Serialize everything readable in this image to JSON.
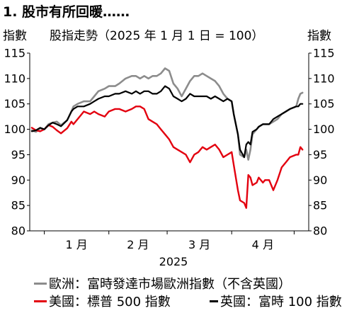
{
  "chart_data": {
    "type": "line",
    "title": "1. 股市有所回暖……",
    "subtitle": "股指走勢（2025 年 1 月 1 日 = 100）",
    "ylabel_left": "指數",
    "ylabel_right": "指數",
    "xlabel": "2025",
    "x_tick_labels": [
      "1 月",
      "2 月",
      "3 月",
      "4 月"
    ],
    "ylim": [
      80,
      115
    ],
    "y_ticks": [
      80,
      85,
      90,
      95,
      100,
      105,
      110,
      115
    ],
    "xlim": [
      "2024-12-25",
      "2025-05-08"
    ],
    "grid": false,
    "legend_position": "bottom",
    "x": [
      "2024-12-26",
      "2024-12-28",
      "2024-12-30",
      "2025-01-01",
      "2025-01-03",
      "2025-01-05",
      "2025-01-07",
      "2025-01-09",
      "2025-01-12",
      "2025-01-14",
      "2025-01-15",
      "2025-01-17",
      "2025-01-20",
      "2025-01-23",
      "2025-01-25",
      "2025-01-27",
      "2025-01-30",
      "2025-02-01",
      "2025-02-04",
      "2025-02-06",
      "2025-02-09",
      "2025-02-12",
      "2025-02-14",
      "2025-02-16",
      "2025-02-18",
      "2025-02-20",
      "2025-02-22",
      "2025-02-24",
      "2025-02-26",
      "2025-02-28",
      "2025-03-02",
      "2025-03-04",
      "2025-03-06",
      "2025-03-08",
      "2025-03-10",
      "2025-03-12",
      "2025-03-14",
      "2025-03-16",
      "2025-03-18",
      "2025-03-20",
      "2025-03-22",
      "2025-03-24",
      "2025-03-26",
      "2025-03-28",
      "2025-03-30",
      "2025-04-01",
      "2025-04-02",
      "2025-04-04",
      "2025-04-05",
      "2025-04-07",
      "2025-04-08",
      "2025-04-09",
      "2025-04-10",
      "2025-04-11",
      "2025-04-13",
      "2025-04-14",
      "2025-04-16",
      "2025-04-17",
      "2025-04-19",
      "2025-04-21",
      "2025-04-23",
      "2025-04-25",
      "2025-04-27",
      "2025-04-29",
      "2025-05-02",
      "2025-05-03",
      "2025-05-04",
      "2025-05-05"
    ],
    "series": [
      {
        "name": "歐洲：富時發達市場歐洲指數（不含英國）",
        "color": "#8c8c8c",
        "values": [
          99.8,
          99.5,
          100.2,
          100,
          101,
          101.3,
          101.5,
          100.8,
          101.8,
          103.5,
          104.5,
          105,
          105.5,
          105.5,
          106.5,
          107.5,
          108,
          108.5,
          108.5,
          109,
          110,
          110.5,
          110.5,
          110,
          110.5,
          110,
          110.5,
          110.5,
          111,
          112,
          111.5,
          109,
          108,
          106.5,
          108,
          109.5,
          110.5,
          110.5,
          111,
          110.5,
          110,
          109.5,
          108.5,
          107,
          106,
          105.5,
          103,
          99,
          95,
          94.5,
          96,
          94,
          96,
          99,
          100,
          100.5,
          101,
          101,
          101,
          101.5,
          102,
          103,
          103.5,
          104,
          104.5,
          106,
          107,
          107.2
        ]
      },
      {
        "name": "美國：標普 500 指數",
        "color": "#e3000f",
        "values": [
          100.3,
          99.8,
          99.6,
          100,
          100.8,
          100.5,
          99.8,
          99.2,
          100.2,
          101.5,
          101,
          102,
          103.5,
          103,
          103.5,
          103,
          102.5,
          103.5,
          104,
          104,
          103.5,
          104,
          104.5,
          104.5,
          104,
          102,
          101.5,
          101,
          100,
          99,
          98,
          96.5,
          96,
          95.5,
          95,
          93.5,
          95,
          95.5,
          96.5,
          96,
          96.5,
          97,
          96,
          94.5,
          95,
          95.5,
          93,
          88,
          86,
          85.5,
          84.5,
          91,
          90.5,
          89,
          89.5,
          90.5,
          89.5,
          90,
          90,
          88,
          90,
          92.5,
          93.5,
          94.5,
          95,
          95,
          96.5,
          96
        ]
      },
      {
        "name": "英國：富時 100 指數",
        "color": "#000000",
        "values": [
          99.6,
          99.8,
          100.3,
          100,
          100.8,
          101.3,
          101,
          100.6,
          101.8,
          103.5,
          104,
          104.5,
          104.5,
          105,
          105.5,
          106,
          106.5,
          106.5,
          107,
          107,
          107.5,
          107,
          107.5,
          107,
          107.5,
          107.5,
          107,
          107,
          107.5,
          108.5,
          108,
          106.5,
          106,
          105.5,
          106,
          107,
          106.5,
          106.5,
          106.5,
          106.5,
          106,
          106.5,
          106,
          105.5,
          106,
          105.5,
          103,
          99,
          96,
          94.5,
          97,
          97.5,
          97,
          99.5,
          100,
          100.5,
          101,
          101,
          101,
          102,
          102.5,
          103,
          103.5,
          104,
          104.5,
          104.5,
          105,
          105
        ]
      }
    ]
  }
}
